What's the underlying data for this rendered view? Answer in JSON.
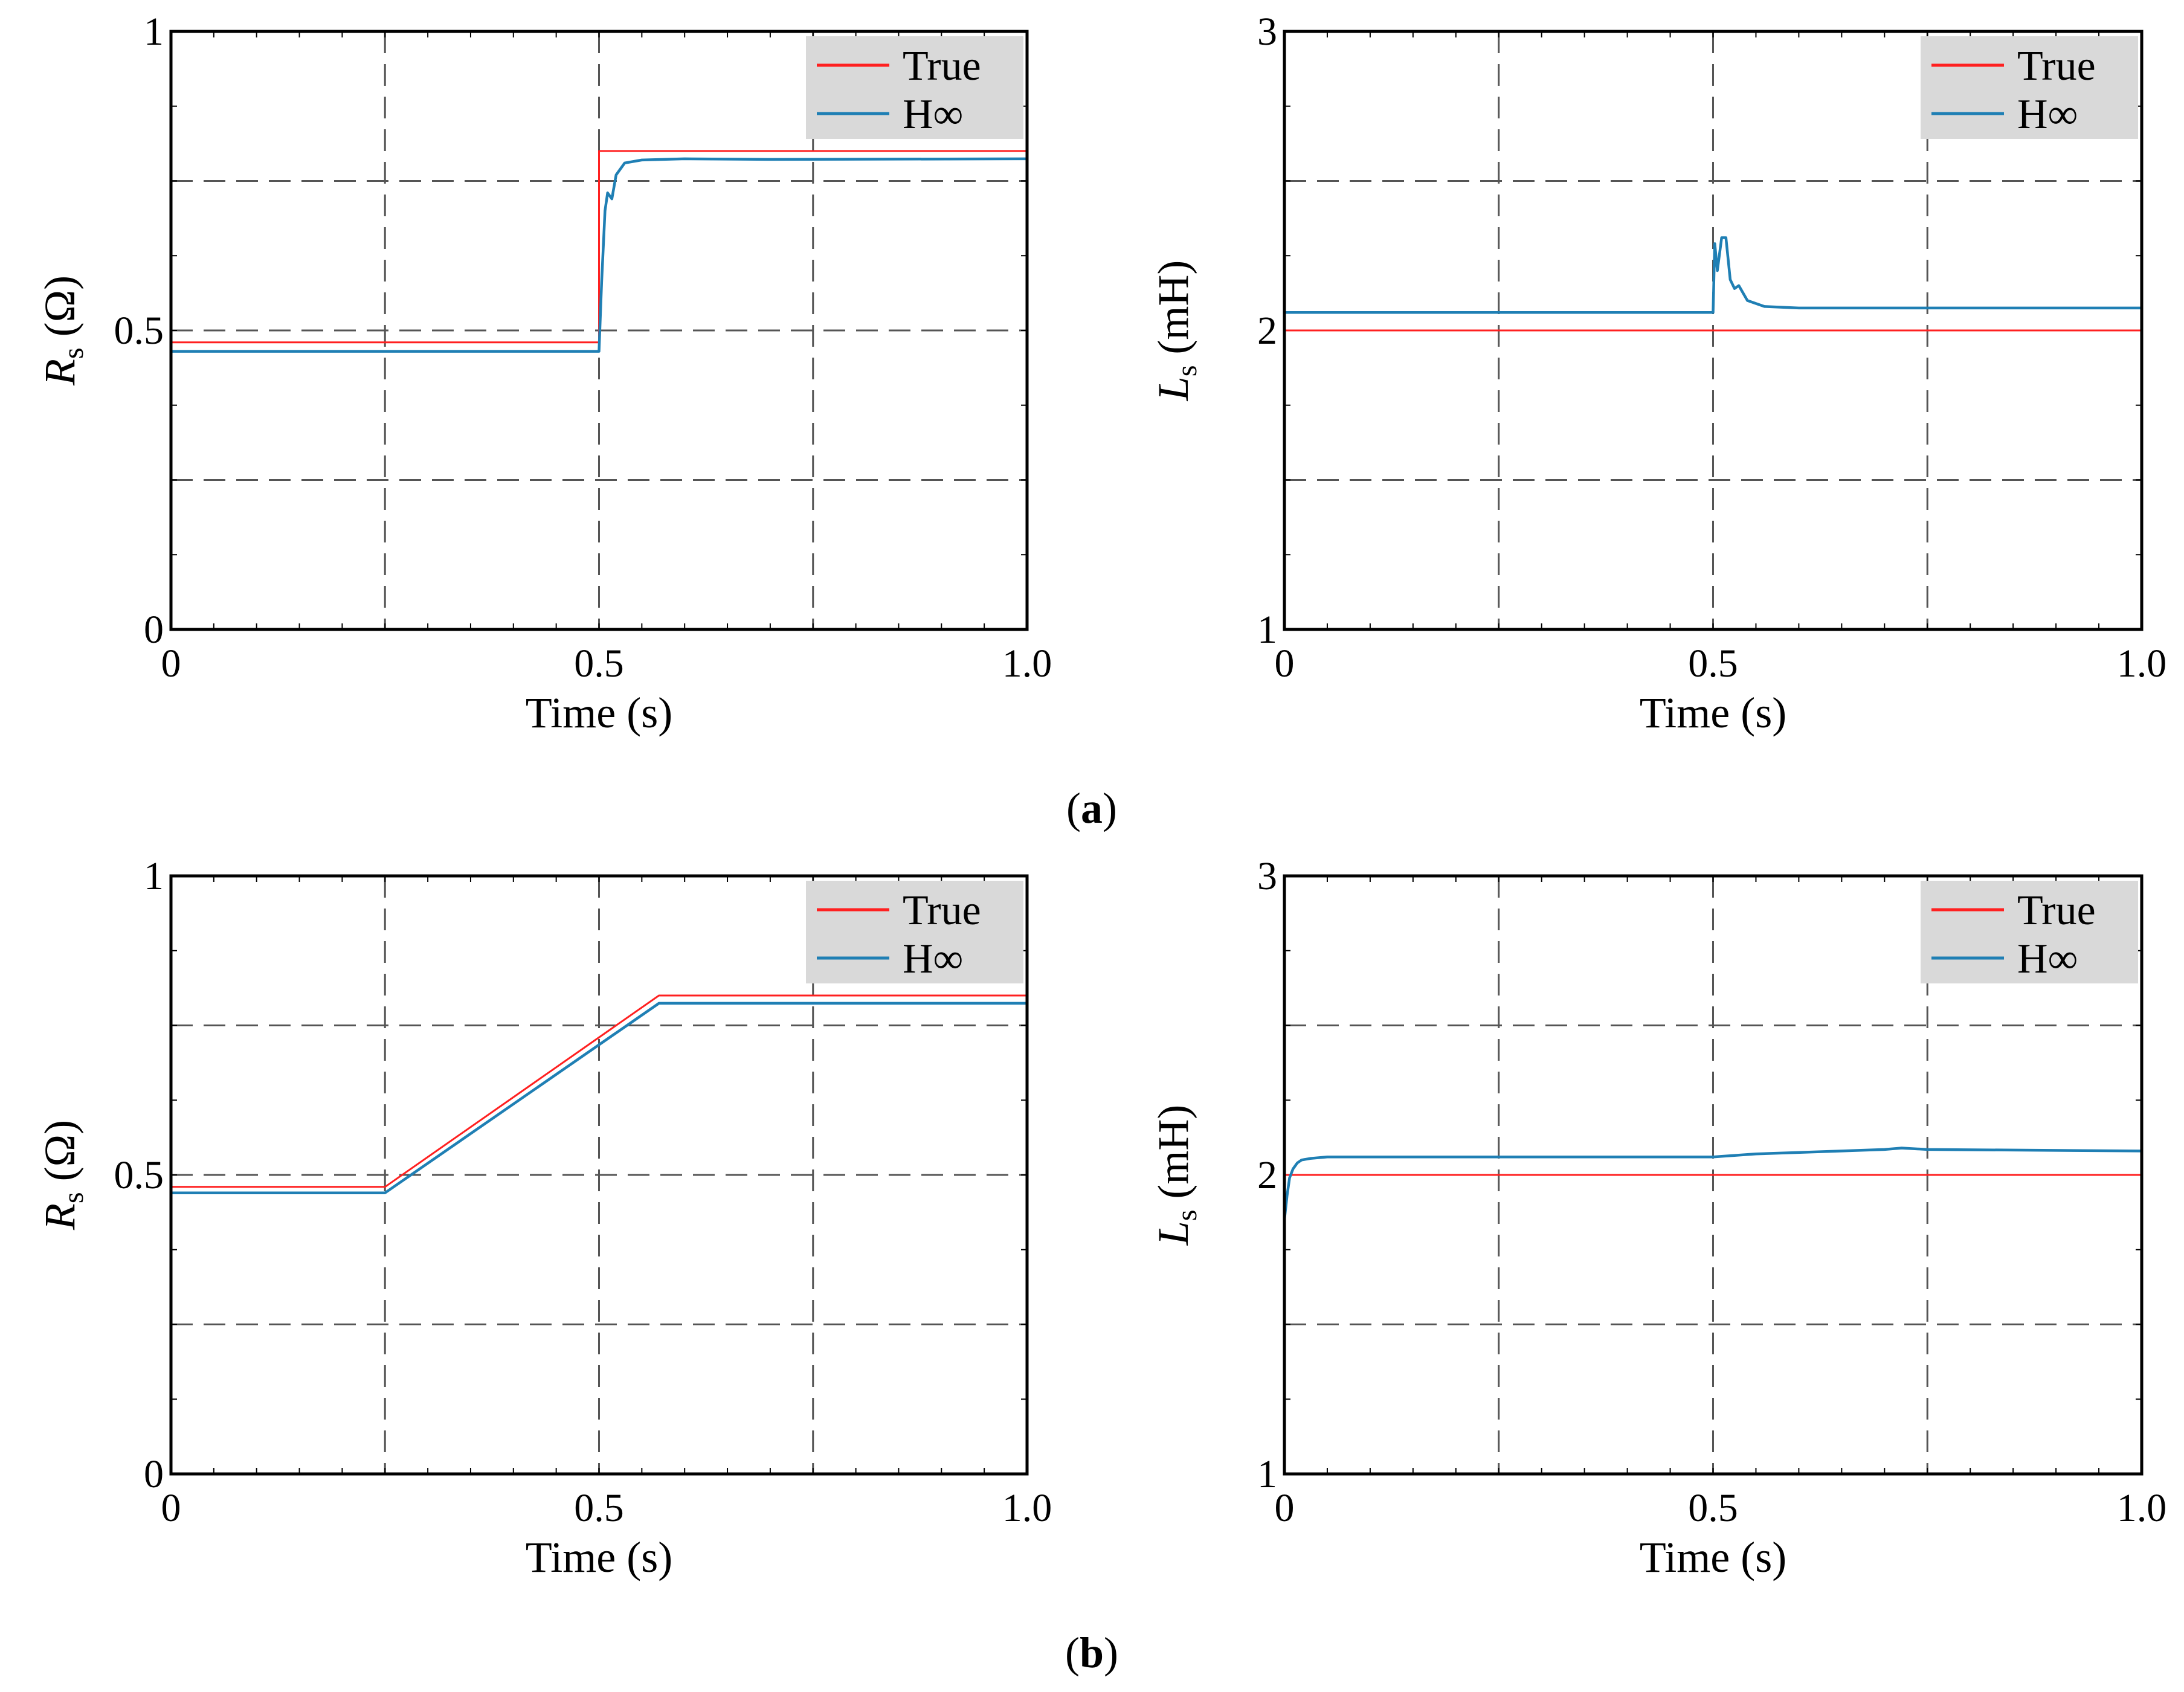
{
  "figure": {
    "caption_a": "a",
    "caption_b": "b",
    "colors": {
      "true_line": "#ff2020",
      "hinf_line": "#1f7fb4",
      "legend_bg": "#d9d9d9",
      "grid": "#555555"
    }
  },
  "chart_data": [
    {
      "id": "a-rs",
      "type": "line",
      "xlabel": "Time (s)",
      "ylabel_main": "R",
      "ylabel_sub": "s",
      "ylabel_unit": " (Ω)",
      "xlim": [
        0,
        1.0
      ],
      "ylim": [
        0,
        1
      ],
      "xticks": [
        0,
        0.25,
        0.5,
        0.75,
        1.0
      ],
      "yticks": [
        0,
        0.25,
        0.5,
        0.75,
        1
      ],
      "xtick_labels": [
        "0",
        "",
        "0.5",
        "",
        "1.0"
      ],
      "ytick_labels": [
        "0",
        "",
        "0.5",
        "",
        "1"
      ],
      "legend": {
        "position": "top-right",
        "entries": [
          "True",
          "H∞"
        ]
      },
      "series": [
        {
          "name": "True",
          "x": [
            0,
            0.5,
            0.5,
            1.0
          ],
          "y": [
            0.48,
            0.48,
            0.8,
            0.8
          ]
        },
        {
          "name": "H∞",
          "x": [
            0,
            0.5,
            0.503,
            0.507,
            0.51,
            0.515,
            0.52,
            0.53,
            0.55,
            0.6,
            0.7,
            1.0
          ],
          "y": [
            0.465,
            0.465,
            0.58,
            0.7,
            0.73,
            0.72,
            0.76,
            0.78,
            0.785,
            0.787,
            0.786,
            0.787
          ]
        }
      ]
    },
    {
      "id": "a-ls",
      "type": "line",
      "xlabel": "Time (s)",
      "ylabel_main": "L",
      "ylabel_sub": "s",
      "ylabel_unit": " (mH)",
      "xlim": [
        0,
        1.0
      ],
      "ylim": [
        1,
        3
      ],
      "xticks": [
        0,
        0.25,
        0.5,
        0.75,
        1.0
      ],
      "yticks": [
        1,
        1.5,
        2,
        2.5,
        3
      ],
      "xtick_labels": [
        "0",
        "",
        "0.5",
        "",
        "1.0"
      ],
      "ytick_labels": [
        "1",
        "",
        "2",
        "",
        "3"
      ],
      "legend": {
        "position": "top-right",
        "entries": [
          "True",
          "H∞"
        ]
      },
      "series": [
        {
          "name": "True",
          "x": [
            0,
            1.0
          ],
          "y": [
            2.0,
            2.0
          ]
        },
        {
          "name": "H∞",
          "x": [
            0,
            0.5,
            0.502,
            0.505,
            0.51,
            0.515,
            0.52,
            0.525,
            0.53,
            0.54,
            0.56,
            0.6,
            1.0
          ],
          "y": [
            2.06,
            2.06,
            2.29,
            2.2,
            2.31,
            2.31,
            2.17,
            2.14,
            2.15,
            2.1,
            2.08,
            2.075,
            2.075
          ]
        }
      ]
    },
    {
      "id": "b-rs",
      "type": "line",
      "xlabel": "Time (s)",
      "ylabel_main": "R",
      "ylabel_sub": "s",
      "ylabel_unit": " (Ω)",
      "xlim": [
        0,
        1.0
      ],
      "ylim": [
        0,
        1
      ],
      "xticks": [
        0,
        0.25,
        0.5,
        0.75,
        1.0
      ],
      "yticks": [
        0,
        0.25,
        0.5,
        0.75,
        1
      ],
      "xtick_labels": [
        "0",
        "",
        "0.5",
        "",
        "1.0"
      ],
      "ytick_labels": [
        "0",
        "",
        "0.5",
        "",
        "1"
      ],
      "legend": {
        "position": "top-right",
        "entries": [
          "True",
          "H∞"
        ]
      },
      "series": [
        {
          "name": "True",
          "x": [
            0,
            0.25,
            0.57,
            1.0
          ],
          "y": [
            0.48,
            0.48,
            0.8,
            0.8
          ]
        },
        {
          "name": "H∞",
          "x": [
            0,
            0.25,
            0.57,
            1.0
          ],
          "y": [
            0.47,
            0.47,
            0.787,
            0.787
          ]
        }
      ]
    },
    {
      "id": "b-ls",
      "type": "line",
      "xlabel": "Time (s)",
      "ylabel_main": "L",
      "ylabel_sub": "s",
      "ylabel_unit": " (mH)",
      "xlim": [
        0,
        1.0
      ],
      "ylim": [
        1,
        3
      ],
      "xticks": [
        0,
        0.25,
        0.5,
        0.75,
        1.0
      ],
      "yticks": [
        1,
        1.5,
        2,
        2.5,
        3
      ],
      "xtick_labels": [
        "0",
        "",
        "0.5",
        "",
        "1.0"
      ],
      "ytick_labels": [
        "1",
        "",
        "2",
        "",
        "3"
      ],
      "legend": {
        "position": "top-right",
        "entries": [
          "True",
          "H∞"
        ]
      },
      "series": [
        {
          "name": "True",
          "x": [
            0,
            1.0
          ],
          "y": [
            2.0,
            2.0
          ]
        },
        {
          "name": "H∞",
          "x": [
            0,
            0.003,
            0.006,
            0.01,
            0.015,
            0.02,
            0.03,
            0.05,
            0.5,
            0.55,
            0.65,
            0.7,
            0.72,
            0.75,
            1.0
          ],
          "y": [
            1.85,
            1.93,
            1.99,
            2.02,
            2.04,
            2.05,
            2.055,
            2.06,
            2.06,
            2.07,
            2.08,
            2.085,
            2.09,
            2.085,
            2.08
          ]
        }
      ]
    }
  ]
}
